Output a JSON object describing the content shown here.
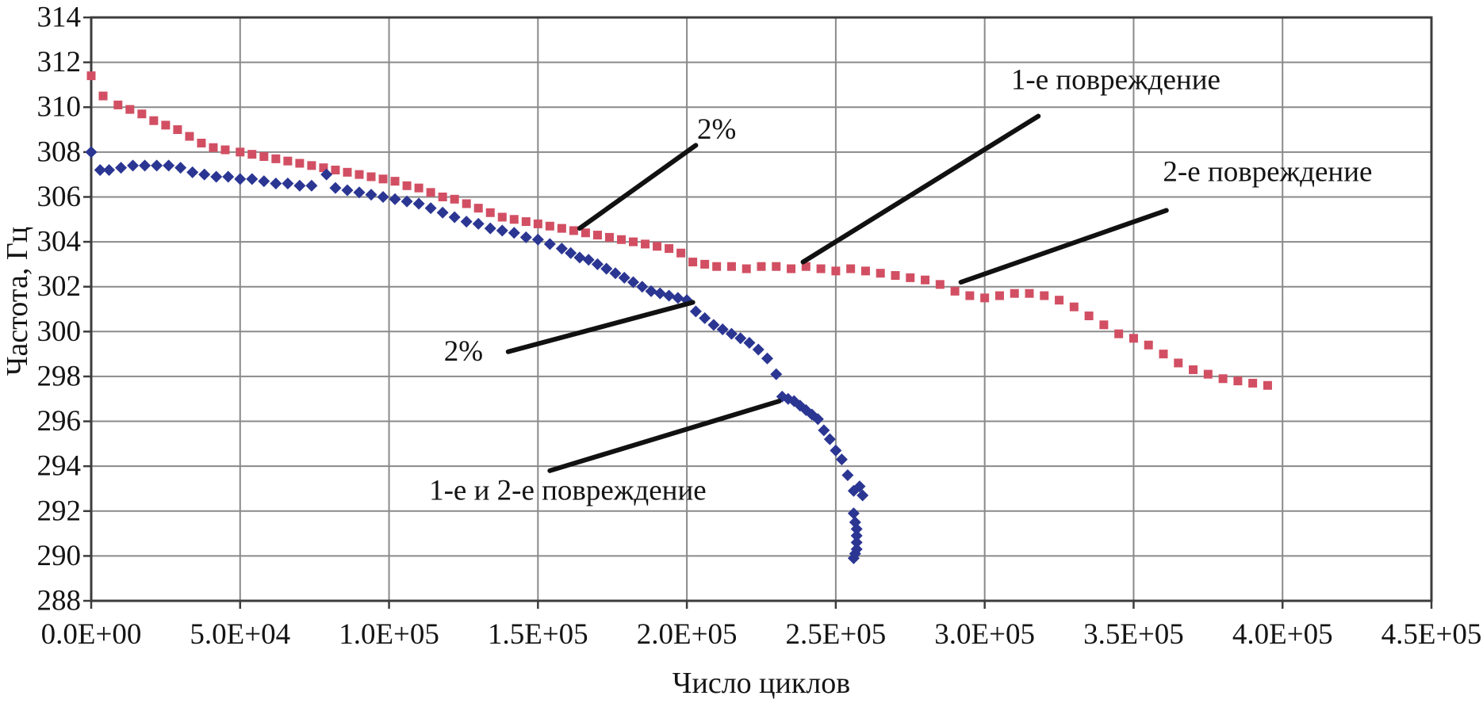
{
  "chart_data": {
    "type": "scatter",
    "title": "",
    "xlabel": "Число циклов",
    "ylabel": "Частота, Гц",
    "xlim": [
      0,
      450000
    ],
    "ylim": [
      288,
      314
    ],
    "grid": true,
    "legend": "none",
    "x_ticks": [
      0,
      50000,
      100000,
      150000,
      200000,
      250000,
      300000,
      350000,
      400000,
      450000
    ],
    "x_tick_labels": [
      "0.0E+00",
      "5.0E+04",
      "1.0E+05",
      "1.5E+05",
      "2.0E+05",
      "2.5E+05",
      "3.0E+05",
      "3.5E+05",
      "4.0E+05",
      "4.5E+05"
    ],
    "y_ticks": [
      288,
      290,
      292,
      294,
      296,
      298,
      300,
      302,
      304,
      306,
      308,
      310,
      312,
      314
    ],
    "y_tick_labels": [
      "288",
      "290",
      "292",
      "294",
      "296",
      "298",
      "300",
      "302",
      "304",
      "306",
      "308",
      "310",
      "312",
      "314"
    ],
    "style": {
      "background": "#ffffff",
      "grid_color": "#8a8a8a",
      "axis_color": "#3c3c3c",
      "text_color": "#141414",
      "annotation_line_color": "#111111"
    },
    "series": [
      {
        "name": "red_squares",
        "marker": "square",
        "color": "#d24f63",
        "points": [
          [
            0,
            311.4
          ],
          [
            4000,
            310.5
          ],
          [
            9000,
            310.1
          ],
          [
            13000,
            309.9
          ],
          [
            17000,
            309.7
          ],
          [
            21000,
            309.4
          ],
          [
            25000,
            309.2
          ],
          [
            29000,
            309.0
          ],
          [
            33000,
            308.7
          ],
          [
            37000,
            308.4
          ],
          [
            41000,
            308.2
          ],
          [
            45000,
            308.1
          ],
          [
            50000,
            308.0
          ],
          [
            54000,
            307.9
          ],
          [
            58000,
            307.8
          ],
          [
            62000,
            307.7
          ],
          [
            66000,
            307.6
          ],
          [
            70000,
            307.5
          ],
          [
            74000,
            307.4
          ],
          [
            78000,
            307.3
          ],
          [
            82000,
            307.2
          ],
          [
            86000,
            307.1
          ],
          [
            90000,
            307.0
          ],
          [
            94000,
            306.9
          ],
          [
            98000,
            306.8
          ],
          [
            102000,
            306.7
          ],
          [
            106000,
            306.5
          ],
          [
            110000,
            306.4
          ],
          [
            114000,
            306.2
          ],
          [
            118000,
            306.0
          ],
          [
            122000,
            305.9
          ],
          [
            126000,
            305.7
          ],
          [
            130000,
            305.5
          ],
          [
            134000,
            305.3
          ],
          [
            138000,
            305.1
          ],
          [
            142000,
            305.0
          ],
          [
            146000,
            304.9
          ],
          [
            150000,
            304.8
          ],
          [
            154000,
            304.7
          ],
          [
            158000,
            304.6
          ],
          [
            162000,
            304.5
          ],
          [
            166000,
            304.4
          ],
          [
            170000,
            304.3
          ],
          [
            174000,
            304.2
          ],
          [
            178000,
            304.1
          ],
          [
            182000,
            304.0
          ],
          [
            186000,
            303.9
          ],
          [
            190000,
            303.8
          ],
          [
            194000,
            303.7
          ],
          [
            198000,
            303.5
          ],
          [
            202000,
            303.1
          ],
          [
            206000,
            303.0
          ],
          [
            210000,
            302.9
          ],
          [
            215000,
            302.9
          ],
          [
            220000,
            302.8
          ],
          [
            225000,
            302.9
          ],
          [
            230000,
            302.9
          ],
          [
            235000,
            302.8
          ],
          [
            240000,
            302.9
          ],
          [
            245000,
            302.8
          ],
          [
            250000,
            302.7
          ],
          [
            255000,
            302.8
          ],
          [
            260000,
            302.7
          ],
          [
            265000,
            302.6
          ],
          [
            270000,
            302.5
          ],
          [
            275000,
            302.4
          ],
          [
            280000,
            302.3
          ],
          [
            285000,
            302.1
          ],
          [
            290000,
            301.8
          ],
          [
            295000,
            301.6
          ],
          [
            300000,
            301.5
          ],
          [
            305000,
            301.6
          ],
          [
            310000,
            301.7
          ],
          [
            315000,
            301.7
          ],
          [
            320000,
            301.6
          ],
          [
            325000,
            301.4
          ],
          [
            330000,
            301.1
          ],
          [
            335000,
            300.7
          ],
          [
            340000,
            300.3
          ],
          [
            345000,
            299.9
          ],
          [
            350000,
            299.7
          ],
          [
            355000,
            299.4
          ],
          [
            360000,
            299.0
          ],
          [
            365000,
            298.6
          ],
          [
            370000,
            298.3
          ],
          [
            375000,
            298.1
          ],
          [
            380000,
            297.9
          ],
          [
            385000,
            297.8
          ],
          [
            390000,
            297.7
          ],
          [
            395000,
            297.6
          ]
        ]
      },
      {
        "name": "blue_diamonds",
        "marker": "diamond",
        "color": "#2b3693",
        "points": [
          [
            0,
            308.0
          ],
          [
            3000,
            307.2
          ],
          [
            6000,
            307.2
          ],
          [
            10000,
            307.3
          ],
          [
            14000,
            307.4
          ],
          [
            18000,
            307.4
          ],
          [
            22000,
            307.4
          ],
          [
            26000,
            307.4
          ],
          [
            30000,
            307.3
          ],
          [
            34000,
            307.1
          ],
          [
            38000,
            307.0
          ],
          [
            42000,
            306.9
          ],
          [
            46000,
            306.9
          ],
          [
            50000,
            306.8
          ],
          [
            54000,
            306.8
          ],
          [
            58000,
            306.7
          ],
          [
            62000,
            306.6
          ],
          [
            66000,
            306.6
          ],
          [
            70000,
            306.5
          ],
          [
            74000,
            306.5
          ],
          [
            79000,
            307.0
          ],
          [
            82000,
            306.4
          ],
          [
            86000,
            306.3
          ],
          [
            90000,
            306.2
          ],
          [
            94000,
            306.1
          ],
          [
            98000,
            306.0
          ],
          [
            102000,
            305.9
          ],
          [
            106000,
            305.8
          ],
          [
            110000,
            305.7
          ],
          [
            114000,
            305.5
          ],
          [
            118000,
            305.3
          ],
          [
            122000,
            305.1
          ],
          [
            126000,
            304.9
          ],
          [
            130000,
            304.8
          ],
          [
            134000,
            304.6
          ],
          [
            138000,
            304.5
          ],
          [
            142000,
            304.4
          ],
          [
            146000,
            304.2
          ],
          [
            150000,
            304.1
          ],
          [
            154000,
            303.9
          ],
          [
            158000,
            303.7
          ],
          [
            161000,
            303.5
          ],
          [
            164000,
            303.3
          ],
          [
            167000,
            303.2
          ],
          [
            170000,
            303.0
          ],
          [
            173000,
            302.8
          ],
          [
            176000,
            302.6
          ],
          [
            179000,
            302.4
          ],
          [
            182000,
            302.2
          ],
          [
            185000,
            302.0
          ],
          [
            188000,
            301.8
          ],
          [
            191000,
            301.7
          ],
          [
            194000,
            301.6
          ],
          [
            197000,
            301.5
          ],
          [
            200000,
            301.4
          ],
          [
            203000,
            300.9
          ],
          [
            206000,
            300.6
          ],
          [
            209000,
            300.3
          ],
          [
            212000,
            300.1
          ],
          [
            215000,
            299.9
          ],
          [
            218000,
            299.7
          ],
          [
            221000,
            299.5
          ],
          [
            224000,
            299.2
          ],
          [
            227000,
            298.8
          ],
          [
            230000,
            298.1
          ],
          [
            232000,
            297.1
          ],
          [
            234000,
            297.0
          ],
          [
            236000,
            296.9
          ],
          [
            238000,
            296.7
          ],
          [
            240000,
            296.5
          ],
          [
            242000,
            296.3
          ],
          [
            244000,
            296.1
          ],
          [
            246000,
            295.6
          ],
          [
            248000,
            295.2
          ],
          [
            250000,
            294.7
          ],
          [
            252000,
            294.3
          ],
          [
            254000,
            293.6
          ],
          [
            256000,
            292.9
          ],
          [
            258000,
            293.1
          ],
          [
            259000,
            292.7
          ],
          [
            256000,
            291.9
          ],
          [
            256500,
            291.5
          ],
          [
            257000,
            291.2
          ],
          [
            257000,
            290.9
          ],
          [
            257000,
            290.6
          ],
          [
            257000,
            290.3
          ],
          [
            256500,
            290.1
          ],
          [
            256000,
            289.9
          ]
        ]
      }
    ],
    "annotations": [
      {
        "label": "2%",
        "label_xy": [
          210000,
          308.9
        ],
        "line": [
          [
            203000,
            308.3
          ],
          [
            164000,
            304.6
          ]
        ]
      },
      {
        "label": "1-е повреждение",
        "label_xy": [
          344000,
          311.1
        ],
        "line": [
          [
            318000,
            309.6
          ],
          [
            239000,
            303.1
          ]
        ]
      },
      {
        "label": "2-е повреждение",
        "label_xy": [
          395000,
          307.0
        ],
        "line": [
          [
            361000,
            305.4
          ],
          [
            292000,
            302.2
          ]
        ]
      },
      {
        "label": "2%",
        "label_xy": [
          125000,
          299.0
        ],
        "line": [
          [
            140000,
            299.1
          ],
          [
            202000,
            301.3
          ]
        ]
      },
      {
        "label": "1-е и 2-е повреждение",
        "label_xy": [
          160000,
          292.8
        ],
        "line": [
          [
            154000,
            293.8
          ],
          [
            231000,
            296.9
          ]
        ]
      }
    ]
  }
}
